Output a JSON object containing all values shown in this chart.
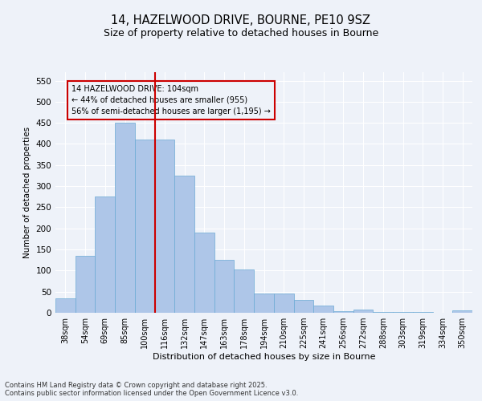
{
  "title_line1": "14, HAZELWOOD DRIVE, BOURNE, PE10 9SZ",
  "title_line2": "Size of property relative to detached houses in Bourne",
  "xlabel": "Distribution of detached houses by size in Bourne",
  "ylabel": "Number of detached properties",
  "categories": [
    "38sqm",
    "54sqm",
    "69sqm",
    "85sqm",
    "100sqm",
    "116sqm",
    "132sqm",
    "147sqm",
    "163sqm",
    "178sqm",
    "194sqm",
    "210sqm",
    "225sqm",
    "241sqm",
    "256sqm",
    "272sqm",
    "288sqm",
    "303sqm",
    "319sqm",
    "334sqm",
    "350sqm"
  ],
  "values": [
    35,
    135,
    275,
    450,
    410,
    410,
    325,
    190,
    125,
    102,
    45,
    45,
    30,
    18,
    3,
    7,
    2,
    1,
    1,
    0,
    5
  ],
  "bar_color": "#aec6e8",
  "bar_edge_color": "#6aaad4",
  "vline_x": 4.5,
  "vline_color": "#cc0000",
  "annotation_text": "14 HAZELWOOD DRIVE: 104sqm\n← 44% of detached houses are smaller (955)\n56% of semi-detached houses are larger (1,195) →",
  "annotation_box_color": "#cc0000",
  "annotation_text_color": "#000000",
  "ylim": [
    0,
    570
  ],
  "yticks": [
    0,
    50,
    100,
    150,
    200,
    250,
    300,
    350,
    400,
    450,
    500,
    550
  ],
  "bg_color": "#eef2f9",
  "grid_color": "#ffffff",
  "footer": "Contains HM Land Registry data © Crown copyright and database right 2025.\nContains public sector information licensed under the Open Government Licence v3.0."
}
